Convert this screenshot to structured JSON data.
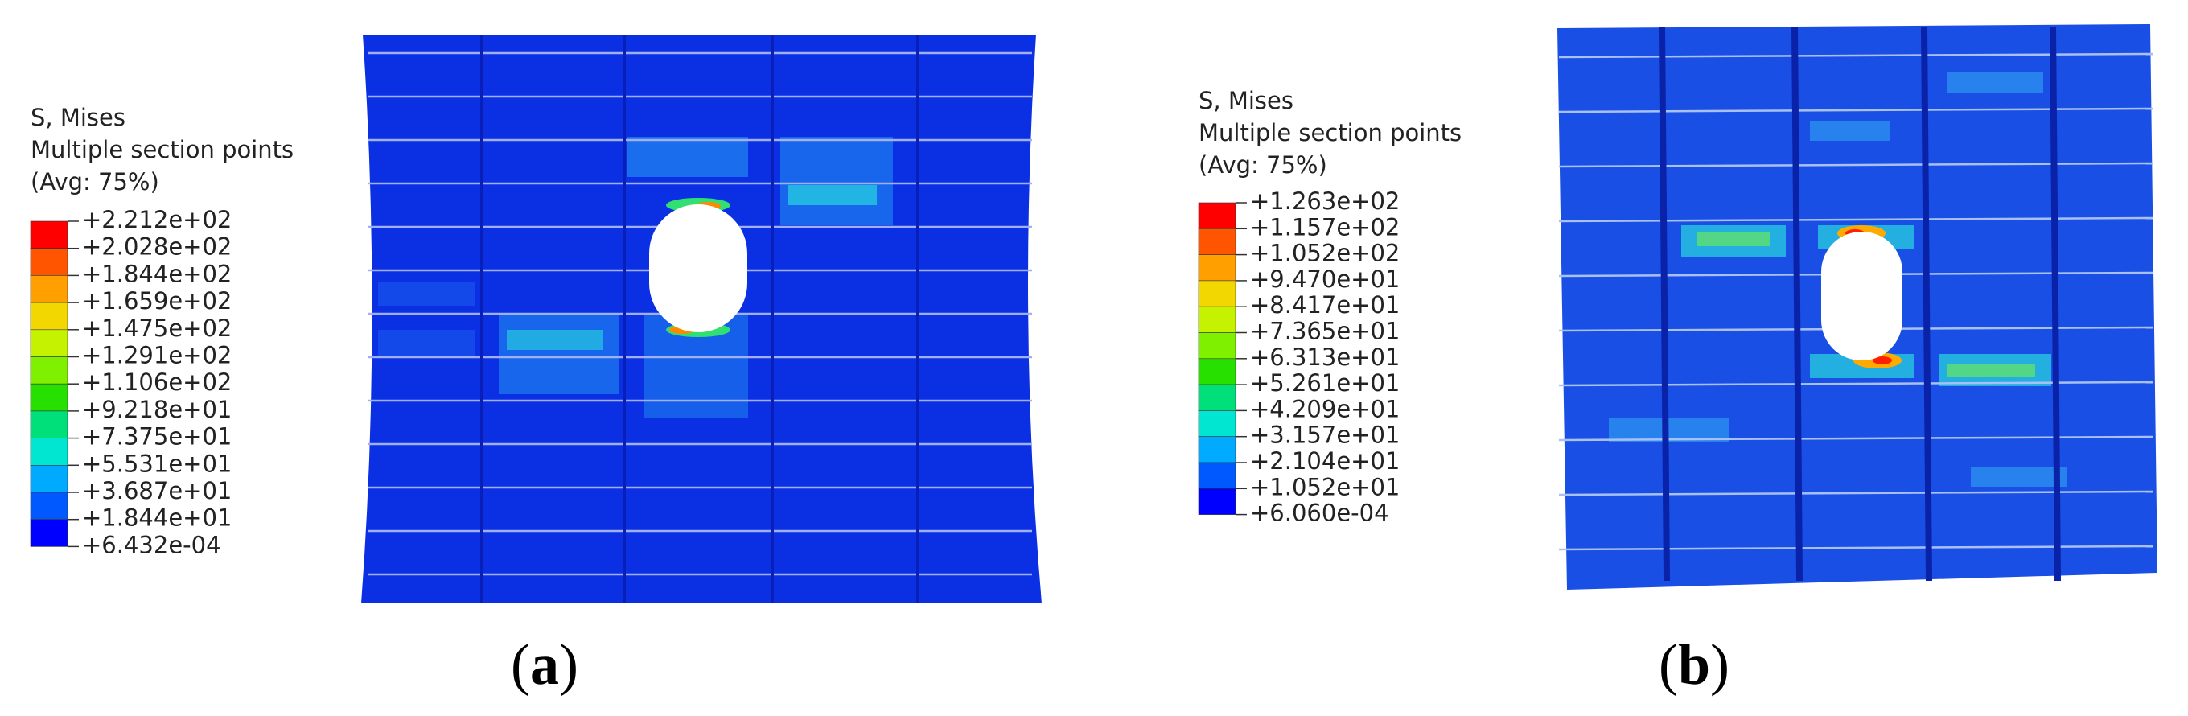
{
  "panels": [
    {
      "legend": {
        "lines": [
          "S, Mises",
          "Multiple section points",
          "(Avg: 75%)"
        ],
        "levels": [
          "+2.212e+02",
          "+2.028e+02",
          "+1.844e+02",
          "+1.659e+02",
          "+1.475e+02",
          "+1.291e+02",
          "+1.106e+02",
          "+9.218e+01",
          "+7.375e+01",
          "+5.531e+01",
          "+3.687e+01",
          "+1.844e+01",
          "+6.432e-04"
        ]
      },
      "caption": {
        "open": "(",
        "letter": "a",
        "close": ")"
      }
    },
    {
      "legend": {
        "lines": [
          "S, Mises",
          "Multiple section points",
          "(Avg: 75%)"
        ],
        "levels": [
          "+1.263e+02",
          "+1.157e+02",
          "+1.052e+02",
          "+9.470e+01",
          "+8.417e+01",
          "+7.365e+01",
          "+6.313e+01",
          "+5.261e+01",
          "+4.209e+01",
          "+3.157e+01",
          "+2.104e+01",
          "+1.052e+01",
          "+6.060e-04"
        ]
      },
      "caption": {
        "open": "(",
        "letter": "b",
        "close": ")"
      }
    }
  ]
}
